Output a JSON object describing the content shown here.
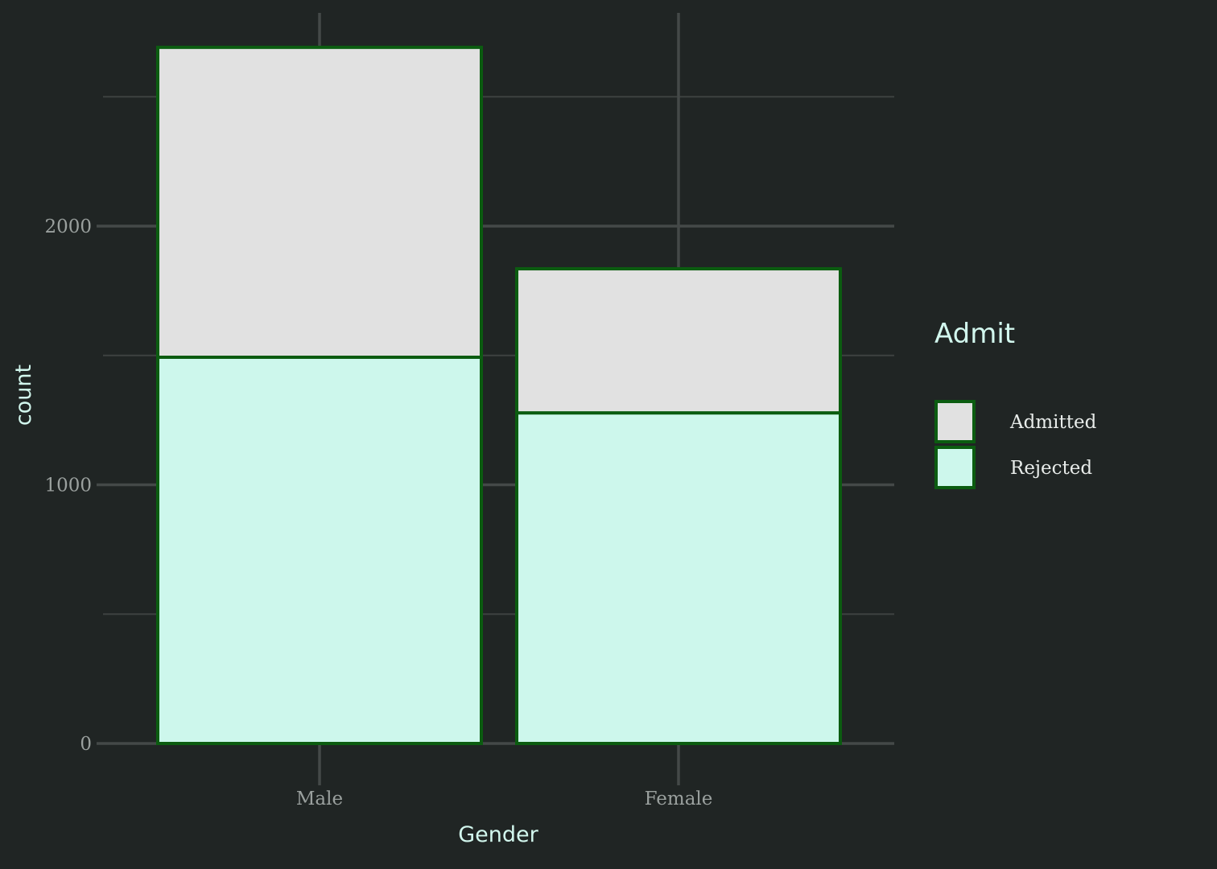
{
  "chart_data": {
    "type": "bar",
    "stacked": true,
    "title": "",
    "xlabel": "Gender",
    "ylabel": "count",
    "categories": [
      "Male",
      "Female"
    ],
    "series": [
      {
        "name": "Rejected",
        "values": [
          1493,
          1278
        ],
        "fill": "#cdf7ec"
      },
      {
        "name": "Admitted",
        "values": [
          1198,
          557
        ],
        "fill": "#e1e1e1"
      }
    ],
    "ylim": [
      0,
      2800
    ],
    "yticks": [
      0,
      1000,
      2000
    ],
    "grid": true,
    "legend": {
      "title": "Admit",
      "position": "right",
      "entries": [
        "Admitted",
        "Rejected"
      ]
    },
    "colors": {
      "background": "#202524",
      "grid": "#3d4240",
      "bar_outline": "#0b5c10"
    }
  }
}
